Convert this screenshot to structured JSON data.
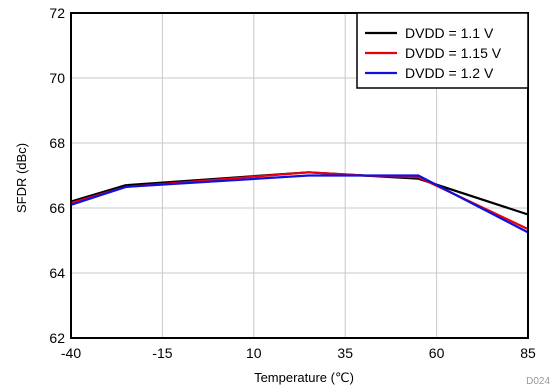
{
  "chart_data": {
    "type": "line",
    "title": "",
    "xlabel": "Temperature (℃)",
    "ylabel": "SFDR (dBc)",
    "xlim": [
      -40,
      85
    ],
    "ylim": [
      62,
      72
    ],
    "x_ticks": [
      "-40",
      "-15",
      "10",
      "35",
      "60",
      "85"
    ],
    "y_ticks": [
      "62",
      "64",
      "66",
      "68",
      "70",
      "72"
    ],
    "grid": true,
    "legend_position": "top-right",
    "figure_id": "D024",
    "series": [
      {
        "name": "DVDD = 1.1 V",
        "color": "#000000",
        "x": [
          -40,
          -25,
          25,
          40,
          55,
          85
        ],
        "y": [
          66.2,
          66.7,
          67.1,
          67.0,
          66.9,
          65.8
        ]
      },
      {
        "name": "DVDD = 1.15 V",
        "color": "#e8000b",
        "x": [
          -40,
          -25,
          25,
          40,
          55,
          85
        ],
        "y": [
          66.15,
          66.65,
          67.1,
          67.0,
          66.95,
          65.35
        ]
      },
      {
        "name": "DVDD = 1.2 V",
        "color": "#1010e0",
        "x": [
          -40,
          -25,
          25,
          40,
          55,
          85
        ],
        "y": [
          66.1,
          66.65,
          67.0,
          67.0,
          67.0,
          65.25
        ]
      }
    ]
  }
}
